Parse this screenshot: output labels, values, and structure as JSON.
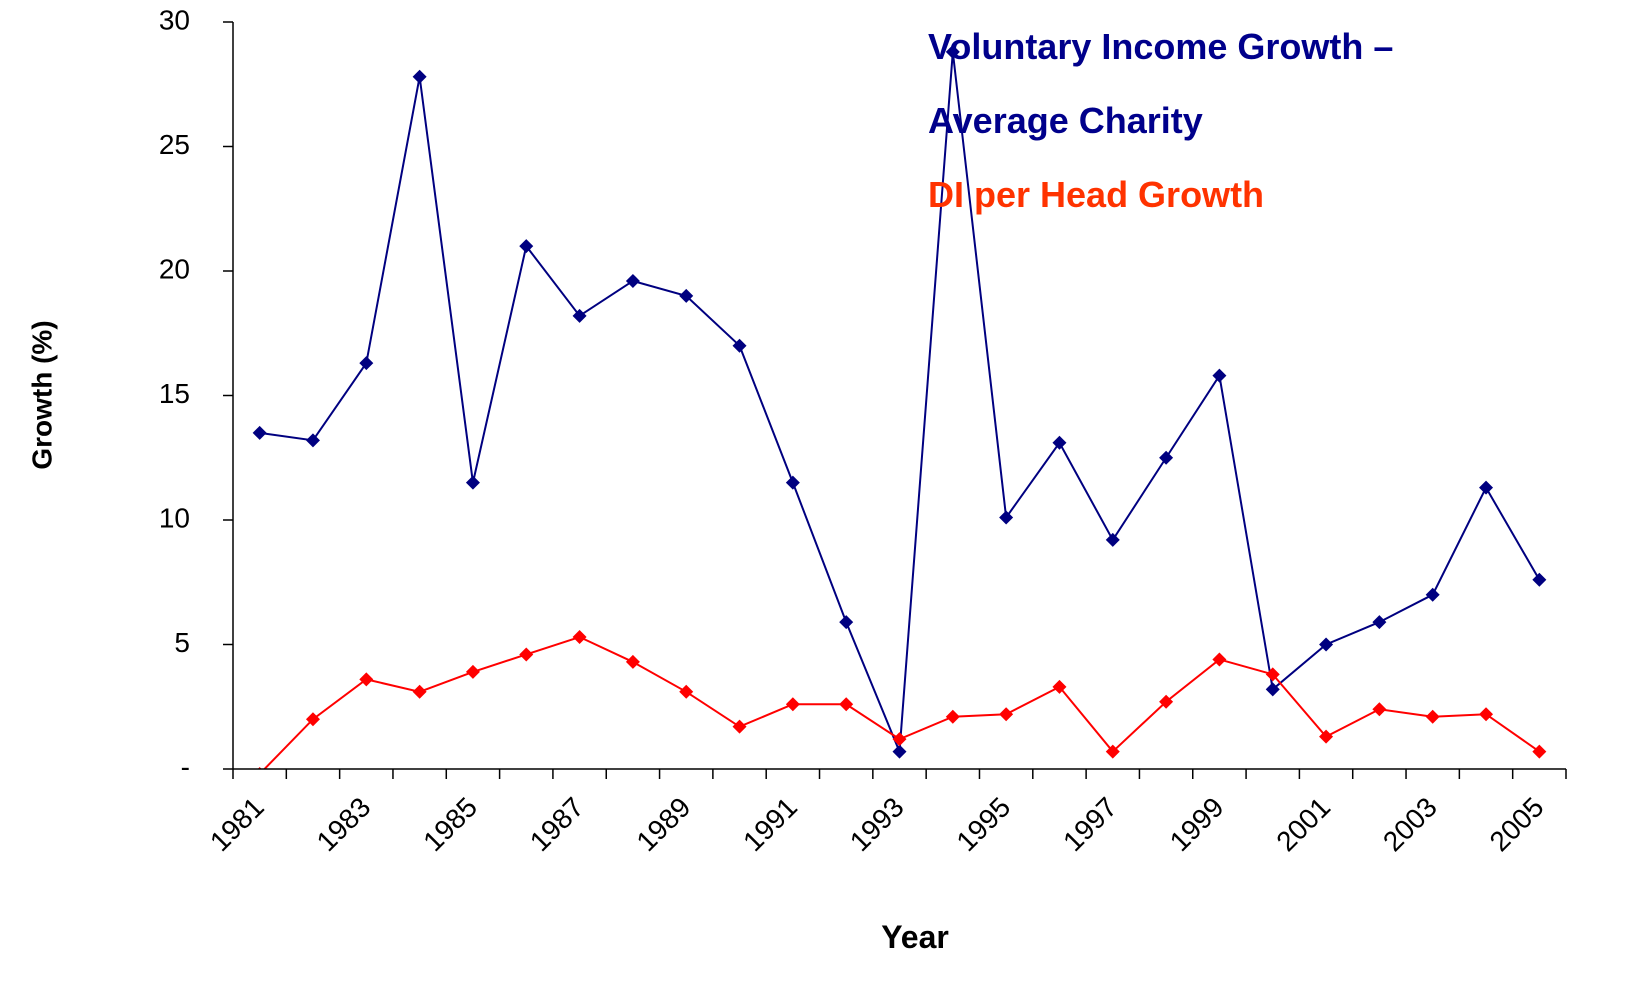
{
  "chart_data": {
    "type": "line",
    "x_label": "Year",
    "y_label": "Growth (%)",
    "categories": [
      "1981",
      null,
      "1983",
      null,
      "1985",
      null,
      "1987",
      null,
      "1989",
      null,
      "1991",
      null,
      "1993",
      null,
      "1995",
      null,
      "1997",
      null,
      "1999",
      null,
      "2001",
      null,
      "2003",
      null,
      "2005"
    ],
    "series": [
      {
        "name": "Voluntary Income Growth – Average Charity",
        "color": "#000080",
        "values": [
          13.5,
          13.2,
          16.3,
          27.8,
          11.5,
          21.0,
          18.2,
          19.6,
          19.0,
          17.0,
          11.5,
          5.9,
          0.7,
          28.8,
          10.1,
          13.1,
          9.2,
          12.5,
          15.8,
          3.2,
          5.0,
          5.9,
          7.0,
          11.3,
          7.6
        ]
      },
      {
        "name": "DI per Head Growth",
        "color": "#ff0000",
        "values": [
          -0.2,
          2.0,
          3.6,
          3.1,
          3.9,
          4.6,
          5.3,
          4.3,
          3.1,
          1.7,
          2.6,
          2.6,
          1.2,
          2.1,
          2.2,
          3.3,
          0.7,
          2.7,
          4.4,
          3.8,
          1.3,
          2.4,
          2.1,
          2.2,
          0.7
        ]
      }
    ],
    "legend_colors": [
      "#00008b",
      "#ff3300"
    ],
    "ylim": [
      0,
      30
    ],
    "yticks": [
      {
        "value": 0,
        "label": "-"
      },
      5,
      10,
      15,
      20,
      25,
      30
    ],
    "grid": false
  }
}
